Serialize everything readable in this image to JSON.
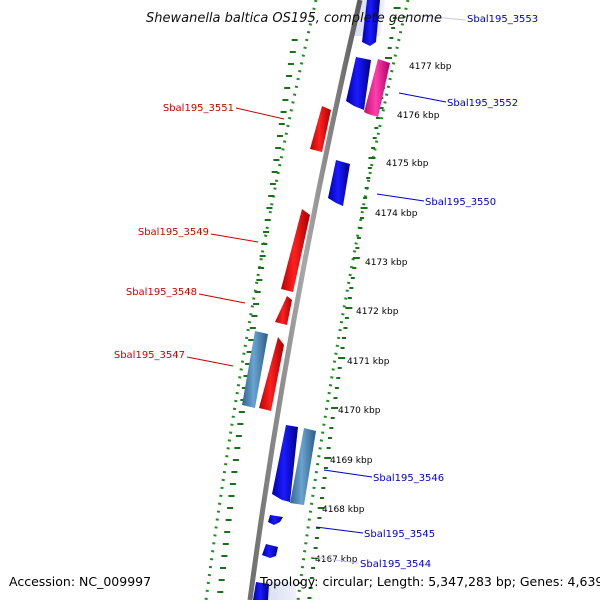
{
  "title": "Shewanella baltica OS195, complete genome",
  "accession": "Accession: NC_009997",
  "summary": "Topology: circular; Length: 5,347,283 bp; Genes: 4,639",
  "colors": {
    "forward_cds": "#0000ff",
    "reverse_cds": "#ff0000",
    "forward_rna": "#ff1493",
    "reverse_rna": "#4682b4",
    "backbone": "#808080",
    "dotted_track": "#228b22",
    "forward_label": "#0000cc",
    "reverse_label": "#cc0000"
  },
  "ruler_labels": [
    "4177 kbp",
    "4176 kbp",
    "4175 kbp",
    "4174 kbp",
    "4173 kbp",
    "4172 kbp",
    "4171 kbp",
    "4170 kbp",
    "4169 kbp",
    "4168 kbp",
    "4167 kbp"
  ],
  "gene_labels": [
    {
      "text": "Sbal195_3553",
      "strand": "forward"
    },
    {
      "text": "Sbal195_3552",
      "strand": "forward"
    },
    {
      "text": "Sbal195_3551",
      "strand": "reverse"
    },
    {
      "text": "Sbal195_3550",
      "strand": "forward"
    },
    {
      "text": "Sbal195_3549",
      "strand": "reverse"
    },
    {
      "text": "Sbal195_3548",
      "strand": "reverse"
    },
    {
      "text": "Sbal195_3547",
      "strand": "reverse"
    },
    {
      "text": "Sbal195_3546",
      "strand": "forward"
    },
    {
      "text": "Sbal195_3545",
      "strand": "forward"
    },
    {
      "text": "Sbal195_3544",
      "strand": "forward"
    }
  ]
}
